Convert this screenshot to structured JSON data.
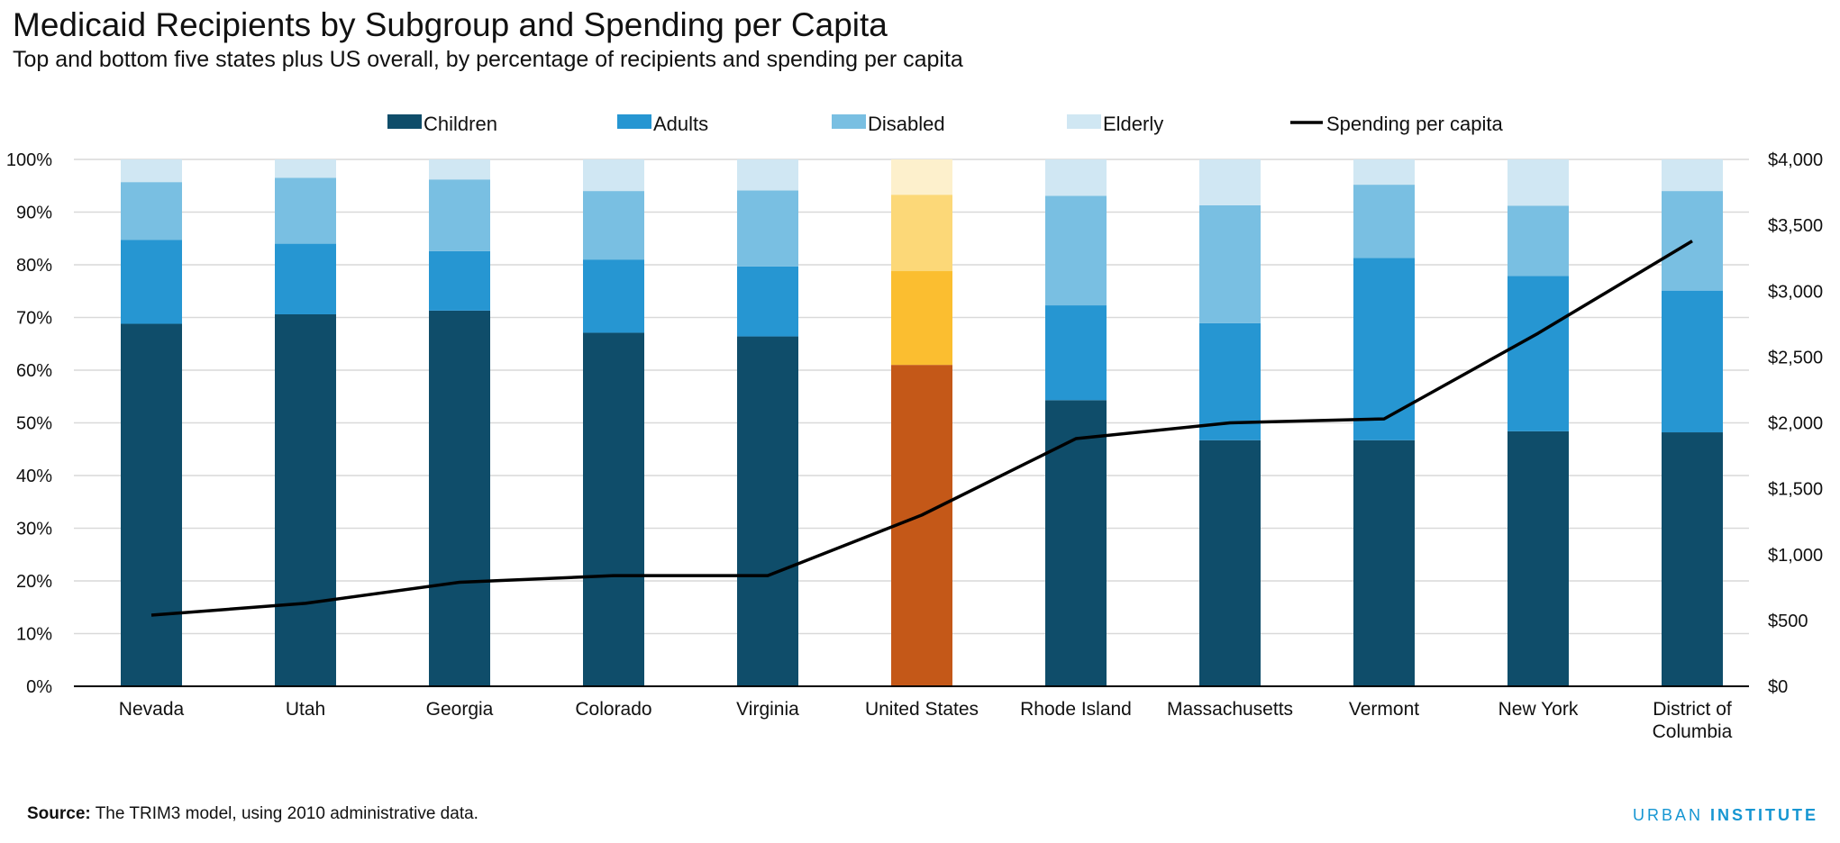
{
  "title": "Medicaid Recipients by Subgroup and Spending per Capita",
  "subtitle": "Top and bottom five states plus US overall, by percentage of recipients and spending per capita",
  "source_label": "Source:",
  "source_text": "The TRIM3 model, using 2010 administrative data.",
  "brand_part1": "URBAN",
  "brand_part2": "INSTITUTE",
  "colors": {
    "children": "#0f4d6a",
    "adults": "#2696d2",
    "disabled": "#79bfe2",
    "elderly": "#d0e7f3",
    "us_children": "#c45818",
    "us_adults": "#fbbe30",
    "us_disabled": "#fcd878",
    "us_elderly": "#fdf0cc",
    "line": "#000000",
    "grid": "#d9d9d9",
    "axis": "#000000"
  },
  "chart_data": {
    "type": "bar",
    "stacked": true,
    "categories": [
      "Nevada",
      "Utah",
      "Georgia",
      "Colorado",
      "Virginia",
      "United States",
      "Rhode Island",
      "Massachusetts",
      "Vermont",
      "New York",
      "District of Columbia"
    ],
    "highlight_category": "United States",
    "series": [
      {
        "name": "Children",
        "type": "bar",
        "axis": "left",
        "values": [
          68.8,
          70.6,
          71.3,
          67.1,
          66.4,
          61.0,
          54.3,
          46.7,
          46.7,
          48.4,
          48.2
        ]
      },
      {
        "name": "Adults",
        "type": "bar",
        "axis": "left",
        "values": [
          15.9,
          13.4,
          11.3,
          13.9,
          13.3,
          17.8,
          18.0,
          22.2,
          34.6,
          29.5,
          26.9
        ]
      },
      {
        "name": "Disabled",
        "type": "bar",
        "axis": "left",
        "values": [
          11.0,
          12.5,
          13.6,
          13.0,
          14.4,
          14.5,
          20.8,
          22.4,
          13.9,
          13.3,
          18.9
        ]
      },
      {
        "name": "Elderly",
        "type": "bar",
        "axis": "left",
        "values": [
          4.3,
          3.5,
          3.8,
          6.0,
          5.9,
          6.7,
          6.9,
          8.7,
          4.8,
          8.8,
          6.0
        ]
      },
      {
        "name": "Spending per capita",
        "type": "line",
        "axis": "right",
        "values": [
          540,
          630,
          790,
          840,
          840,
          1300,
          1880,
          2000,
          2030,
          2680,
          3380
        ]
      }
    ],
    "y_left": {
      "min": 0,
      "max": 100,
      "ticks": [
        "0%",
        "10%",
        "20%",
        "30%",
        "40%",
        "50%",
        "60%",
        "70%",
        "80%",
        "90%",
        "100%"
      ]
    },
    "y_right": {
      "min": 0,
      "max": 4000,
      "ticks": [
        "$0",
        "$500",
        "$1,000",
        "$1,500",
        "$2,000",
        "$2,500",
        "$3,000",
        "$3,500",
        "$4,000"
      ]
    },
    "grid": true,
    "legend_position": "top"
  }
}
